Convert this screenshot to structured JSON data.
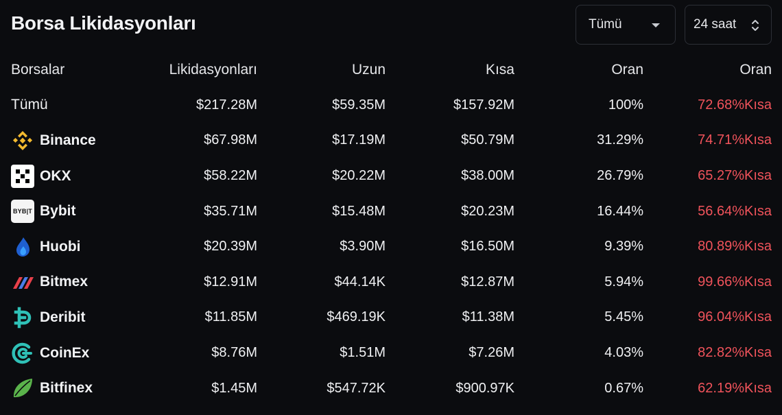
{
  "header": {
    "title": "Borsa Likidasyonları",
    "filter_value": "Tümü",
    "period_value": "24 saat"
  },
  "table": {
    "columns": [
      "Borsalar",
      "Likidasyonları",
      "Uzun",
      "Kısa",
      "Oran",
      "Oran"
    ],
    "rows": [
      {
        "exchange": "Tümü",
        "icon": null,
        "liquidations": "$217.28M",
        "long": "$59.35M",
        "short": "$157.92M",
        "share": "100%",
        "ratio": "72.68%Kısa"
      },
      {
        "exchange": "Binance",
        "icon": "binance-icon",
        "liquidations": "$67.98M",
        "long": "$17.19M",
        "short": "$50.79M",
        "share": "31.29%",
        "ratio": "74.71%Kısa"
      },
      {
        "exchange": "OKX",
        "icon": "okx-icon",
        "liquidations": "$58.22M",
        "long": "$20.22M",
        "short": "$38.00M",
        "share": "26.79%",
        "ratio": "65.27%Kısa"
      },
      {
        "exchange": "Bybit",
        "icon": "bybit-icon",
        "icon_text": "BYB|T",
        "liquidations": "$35.71M",
        "long": "$15.48M",
        "short": "$20.23M",
        "share": "16.44%",
        "ratio": "56.64%Kısa"
      },
      {
        "exchange": "Huobi",
        "icon": "huobi-icon",
        "liquidations": "$20.39M",
        "long": "$3.90M",
        "short": "$16.50M",
        "share": "9.39%",
        "ratio": "80.89%Kısa"
      },
      {
        "exchange": "Bitmex",
        "icon": "bitmex-icon",
        "liquidations": "$12.91M",
        "long": "$44.14K",
        "short": "$12.87M",
        "share": "5.94%",
        "ratio": "99.66%Kısa"
      },
      {
        "exchange": "Deribit",
        "icon": "deribit-icon",
        "liquidations": "$11.85M",
        "long": "$469.19K",
        "short": "$11.38M",
        "share": "5.45%",
        "ratio": "96.04%Kısa"
      },
      {
        "exchange": "CoinEx",
        "icon": "coinex-icon",
        "liquidations": "$8.76M",
        "long": "$1.51M",
        "short": "$7.26M",
        "share": "4.03%",
        "ratio": "82.82%Kısa"
      },
      {
        "exchange": "Bitfinex",
        "icon": "bitfinex-icon",
        "liquidations": "$1.45M",
        "long": "$547.72K",
        "short": "$900.97K",
        "share": "0.67%",
        "ratio": "62.19%Kısa"
      }
    ]
  },
  "colors": {
    "background": "#0b0c0f",
    "short_ratio": "#f0535b",
    "binance": "#f3ba2f",
    "deribit": "#2fc1b7",
    "coinex": "#2fc1b7",
    "bitfinex": "#5ab34b",
    "huobi": "#1f6fe0",
    "bitmex": "#e8404a"
  }
}
